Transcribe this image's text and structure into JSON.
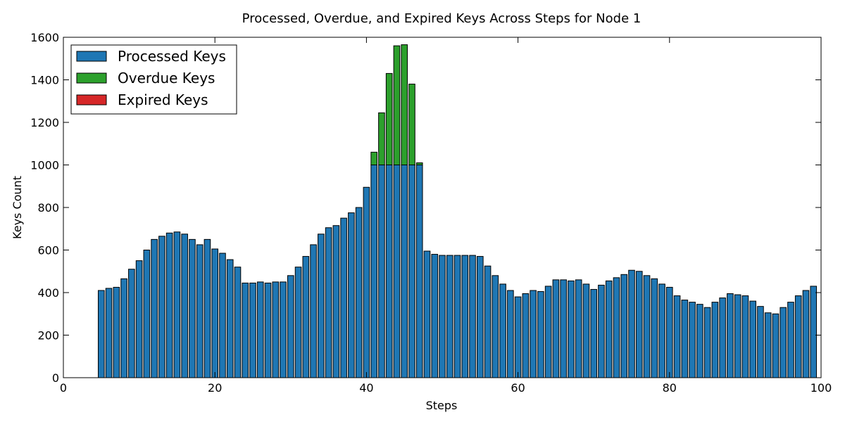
{
  "chart_data": {
    "type": "bar",
    "stacked": true,
    "title": "Processed, Overdue, and Expired Keys Across Steps for Node 1",
    "xlabel": "Steps",
    "ylabel": "Keys Count",
    "xlim": [
      0,
      100
    ],
    "ylim": [
      0,
      1600
    ],
    "xticks": [
      0,
      20,
      40,
      60,
      80,
      100
    ],
    "yticks": [
      0,
      200,
      400,
      600,
      800,
      1000,
      1200,
      1400,
      1600
    ],
    "grid": false,
    "legend_position": "top-left",
    "x": [
      1,
      2,
      3,
      4,
      5,
      6,
      7,
      8,
      9,
      10,
      11,
      12,
      13,
      14,
      15,
      16,
      17,
      18,
      19,
      20,
      21,
      22,
      23,
      24,
      25,
      26,
      27,
      28,
      29,
      30,
      31,
      32,
      33,
      34,
      35,
      36,
      37,
      38,
      39,
      40,
      41,
      42,
      43,
      44,
      45,
      46,
      47,
      48,
      49,
      50,
      51,
      52,
      53,
      54,
      55,
      56,
      57,
      58,
      59,
      60,
      61,
      62,
      63,
      64,
      65,
      66,
      67,
      68,
      69,
      70,
      71,
      72,
      73,
      74,
      75,
      76,
      77,
      78,
      79,
      80,
      81,
      82,
      83,
      84,
      85,
      86,
      87,
      88,
      89,
      90,
      91,
      92,
      93,
      94,
      95,
      96,
      97,
      98,
      99
    ],
    "series": [
      {
        "name": "Processed Keys",
        "color": "#1f77b4",
        "values": [
          0,
          0,
          0,
          0,
          410,
          420,
          425,
          465,
          510,
          550,
          600,
          650,
          665,
          680,
          685,
          675,
          650,
          625,
          650,
          605,
          585,
          555,
          520,
          445,
          445,
          450,
          445,
          450,
          450,
          480,
          520,
          570,
          625,
          675,
          705,
          715,
          750,
          775,
          800,
          895,
          1000,
          1000,
          1000,
          1000,
          1000,
          1000,
          1000,
          595,
          580,
          575,
          575,
          575,
          575,
          575,
          570,
          525,
          480,
          440,
          410,
          380,
          395,
          410,
          405,
          430,
          460,
          460,
          455,
          460,
          440,
          415,
          435,
          455,
          470,
          485,
          505,
          500,
          480,
          465,
          440,
          425,
          385,
          365,
          355,
          345,
          330,
          355,
          375,
          395,
          390,
          385,
          360,
          335,
          305,
          300,
          330,
          355,
          385,
          410,
          430
        ]
      },
      {
        "name": "Overdue Keys",
        "color": "#2ca02c",
        "values": [
          0,
          0,
          0,
          0,
          0,
          0,
          0,
          0,
          0,
          0,
          0,
          0,
          0,
          0,
          0,
          0,
          0,
          0,
          0,
          0,
          0,
          0,
          0,
          0,
          0,
          0,
          0,
          0,
          0,
          0,
          0,
          0,
          0,
          0,
          0,
          0,
          0,
          0,
          0,
          0,
          60,
          245,
          430,
          560,
          565,
          380,
          10,
          0,
          0,
          0,
          0,
          0,
          0,
          0,
          0,
          0,
          0,
          0,
          0,
          0,
          0,
          0,
          0,
          0,
          0,
          0,
          0,
          0,
          0,
          0,
          0,
          0,
          0,
          0,
          0,
          0,
          0,
          0,
          0,
          0,
          0,
          0,
          0,
          0,
          0,
          0,
          0,
          0,
          0,
          0,
          0,
          0,
          0,
          0,
          0,
          0,
          0,
          0,
          0
        ]
      },
      {
        "name": "Expired Keys",
        "color": "#d62728",
        "values": [
          0,
          0,
          0,
          0,
          0,
          0,
          0,
          0,
          0,
          0,
          0,
          0,
          0,
          0,
          0,
          0,
          0,
          0,
          0,
          0,
          0,
          0,
          0,
          0,
          0,
          0,
          0,
          0,
          0,
          0,
          0,
          0,
          0,
          0,
          0,
          0,
          0,
          0,
          0,
          0,
          0,
          0,
          0,
          0,
          0,
          0,
          0,
          0,
          0,
          0,
          0,
          0,
          0,
          0,
          0,
          0,
          0,
          0,
          0,
          0,
          0,
          0,
          0,
          0,
          0,
          0,
          0,
          0,
          0,
          0,
          0,
          0,
          0,
          0,
          0,
          0,
          0,
          0,
          0,
          0,
          0,
          0,
          0,
          0,
          0,
          0,
          0,
          0,
          0,
          0,
          0,
          0,
          0,
          0,
          0,
          0,
          0,
          0,
          0
        ]
      }
    ]
  }
}
